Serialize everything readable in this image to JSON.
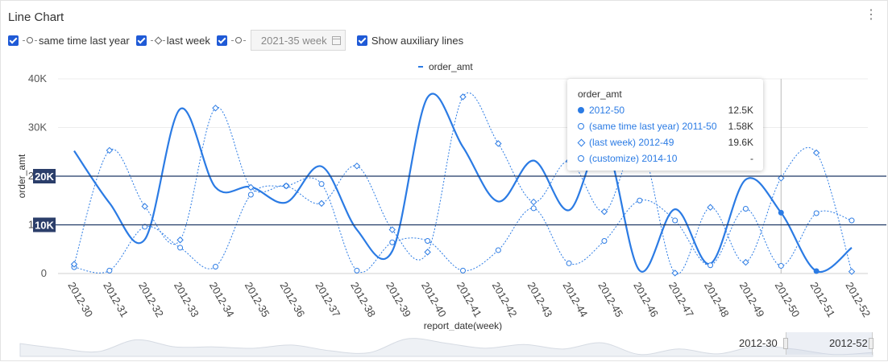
{
  "card": {
    "title": "Line Chart",
    "more_icon": "⋮"
  },
  "controls": {
    "same_time_label": "same time last year",
    "last_week_label": "last week",
    "custom_week_value": "2021-35 week",
    "aux_label": "Show auxiliary lines"
  },
  "tooltip": {
    "title": "order_amt",
    "rows": [
      {
        "label": "2012-50",
        "value": "12.5K"
      },
      {
        "label": "(same time last year) 2011-50",
        "value": "1.58K"
      },
      {
        "label": "(last week) 2012-49",
        "value": "19.6K"
      },
      {
        "label": "(customize) 2014-10",
        "value": "-"
      }
    ]
  },
  "slider": {
    "start_label": "2012-30",
    "end_label": "2012-52"
  },
  "chart_data": {
    "type": "line",
    "legend": [
      "order_amt"
    ],
    "legend_position": "top-center",
    "xlabel": "report_date(week)",
    "ylabel": "order_amt",
    "ylim": [
      0,
      40000
    ],
    "yticks": [
      "0",
      "10K",
      "20K",
      "30K",
      "40K"
    ],
    "categories": [
      "2012-30",
      "2012-31",
      "2012-32",
      "2012-33",
      "2012-34",
      "2012-35",
      "2012-36",
      "2012-37",
      "2012-38",
      "2012-39",
      "2012-40",
      "2012-41",
      "2012-42",
      "2012-43",
      "2012-44",
      "2012-45",
      "2012-46",
      "2012-47",
      "2012-48",
      "2012-49",
      "2012-50",
      "2012-51",
      "2012-52"
    ],
    "aux_lines": [
      {
        "value": 20000,
        "label": "20K"
      },
      {
        "value": 10000,
        "label": "10K"
      }
    ],
    "series": [
      {
        "name": "order_amt",
        "style": "solid",
        "values": [
          25200,
          14500,
          7000,
          33800,
          17700,
          17800,
          14600,
          22000,
          9000,
          4600,
          36200,
          26000,
          14800,
          23200,
          13000,
          27000,
          600,
          13200,
          2000,
          19300,
          12500,
          500,
          5300
        ]
      },
      {
        "name": "same time last year",
        "style": "dotted-circle",
        "values": [
          1300,
          600,
          9600,
          5300,
          1400,
          16200,
          18000,
          18400,
          600,
          6400,
          6700,
          600,
          4800,
          13400,
          2100,
          6700,
          15000,
          10900,
          1700,
          13300,
          1580,
          12400,
          10900
        ]
      },
      {
        "name": "last week",
        "style": "dotted-diamond",
        "values": [
          1900,
          25300,
          13800,
          6900,
          34000,
          17700,
          18000,
          14400,
          22100,
          9000,
          4400,
          36300,
          26700,
          14700,
          23100,
          12700,
          26800,
          100,
          13600,
          2300,
          19600,
          24800,
          400
        ]
      }
    ],
    "highlight_category": "2012-50",
    "colors": {
      "main": "#2b7be4",
      "aux_line": "#1f3864",
      "label_bg": "#2b3e6a"
    }
  }
}
